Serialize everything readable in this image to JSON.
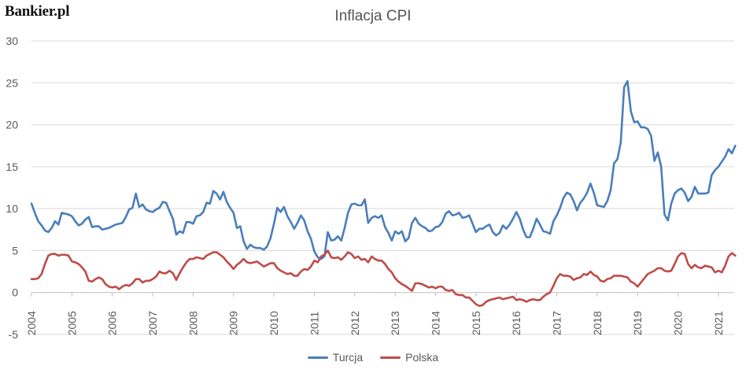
{
  "logo": "Bankier.pl",
  "chart_data": {
    "type": "line",
    "title": "Inflacja CPI",
    "xlabel": "",
    "ylabel": "",
    "ylim": [
      -5,
      30
    ],
    "yticks": [
      -5,
      0,
      5,
      10,
      15,
      20,
      25,
      30
    ],
    "xticks": [
      "2004",
      "2005",
      "2006",
      "2007",
      "2008",
      "2009",
      "2010",
      "2011",
      "2012",
      "2013",
      "2014",
      "2015",
      "2016",
      "2017",
      "2018",
      "2019",
      "2020",
      "2021"
    ],
    "grid": "horizontal",
    "legend_position": "bottom",
    "x_start": "2004-01",
    "x_end": "2021-07",
    "series": [
      {
        "name": "Turcja",
        "color": "#4a7ebb",
        "values": [
          10.6,
          9.5,
          8.5,
          8.0,
          7.4,
          7.2,
          7.7,
          8.5,
          8.1,
          9.5,
          9.4,
          9.3,
          9.1,
          8.5,
          8.0,
          8.2,
          8.7,
          9.0,
          7.8,
          7.9,
          7.9,
          7.5,
          7.6,
          7.7,
          7.9,
          8.1,
          8.2,
          8.3,
          9.0,
          9.9,
          10.1,
          11.8,
          10.2,
          10.5,
          9.9,
          9.7,
          9.6,
          9.9,
          10.1,
          10.8,
          10.7,
          9.7,
          8.8,
          6.9,
          7.3,
          7.1,
          8.4,
          8.4,
          8.2,
          9.1,
          9.2,
          9.6,
          10.7,
          10.6,
          12.1,
          11.8,
          11.1,
          12.0,
          10.8,
          10.1,
          9.5,
          7.7,
          7.9,
          6.1,
          5.2,
          5.7,
          5.4,
          5.3,
          5.3,
          5.1,
          5.5,
          6.5,
          8.2,
          10.1,
          9.6,
          10.2,
          9.1,
          8.4,
          7.6,
          8.3,
          9.2,
          8.6,
          7.3,
          6.4,
          4.9,
          4.2,
          4.0,
          4.3,
          7.2,
          6.2,
          6.3,
          6.7,
          6.2,
          7.7,
          9.5,
          10.5,
          10.6,
          10.4,
          10.4,
          11.1,
          8.3,
          8.9,
          9.1,
          8.9,
          9.2,
          7.8,
          7.1,
          6.2,
          7.3,
          7.0,
          7.3,
          6.1,
          6.5,
          8.3,
          8.9,
          8.2,
          7.9,
          7.7,
          7.3,
          7.4,
          7.8,
          7.9,
          8.4,
          9.4,
          9.7,
          9.2,
          9.3,
          9.5,
          8.9,
          9.0,
          9.2,
          8.2,
          7.2,
          7.6,
          7.6,
          7.9,
          8.1,
          7.2,
          6.8,
          7.1,
          8.0,
          7.6,
          8.1,
          8.8,
          9.6,
          8.8,
          7.5,
          6.6,
          6.6,
          7.6,
          8.8,
          8.1,
          7.3,
          7.2,
          7.0,
          8.5,
          9.2,
          10.1,
          11.3,
          11.9,
          11.7,
          10.9,
          9.8,
          10.7,
          11.2,
          11.9,
          13.0,
          11.9,
          10.4,
          10.3,
          10.2,
          10.9,
          12.2,
          15.4,
          15.9,
          17.9,
          24.5,
          25.2,
          21.6,
          20.3,
          20.4,
          19.7,
          19.7,
          19.5,
          18.7,
          15.7,
          16.7,
          15.0,
          9.3,
          8.6,
          10.6,
          11.8,
          12.2,
          12.4,
          11.9,
          10.9,
          11.4,
          12.6,
          11.8,
          11.8,
          11.8,
          11.9,
          14.0,
          14.6,
          15.0,
          15.6,
          16.2,
          17.1,
          16.6,
          17.5
        ]
      },
      {
        "name": "Polska",
        "color": "#be4b48",
        "values": [
          1.6,
          1.6,
          1.7,
          2.2,
          3.4,
          4.4,
          4.6,
          4.6,
          4.4,
          4.5,
          4.5,
          4.4,
          3.7,
          3.6,
          3.4,
          3.0,
          2.5,
          1.4,
          1.3,
          1.6,
          1.8,
          1.6,
          1.0,
          0.7,
          0.6,
          0.7,
          0.4,
          0.7,
          0.9,
          0.8,
          1.1,
          1.6,
          1.6,
          1.2,
          1.4,
          1.4,
          1.6,
          1.9,
          2.5,
          2.3,
          2.3,
          2.6,
          2.3,
          1.5,
          2.3,
          3.0,
          3.6,
          4.0,
          4.0,
          4.2,
          4.1,
          4.0,
          4.4,
          4.6,
          4.8,
          4.8,
          4.5,
          4.2,
          3.7,
          3.3,
          2.8,
          3.3,
          3.6,
          4.0,
          3.6,
          3.5,
          3.6,
          3.7,
          3.4,
          3.1,
          3.3,
          3.5,
          3.5,
          2.9,
          2.6,
          2.4,
          2.2,
          2.3,
          2.0,
          2.0,
          2.5,
          2.8,
          2.7,
          3.1,
          3.8,
          3.6,
          4.3,
          4.5,
          5.0,
          4.2,
          4.1,
          4.2,
          3.9,
          4.3,
          4.8,
          4.6,
          4.1,
          4.3,
          3.9,
          4.0,
          3.6,
          4.3,
          4.0,
          3.8,
          3.8,
          3.4,
          2.8,
          2.4,
          1.7,
          1.3,
          1.0,
          0.8,
          0.5,
          0.2,
          1.1,
          1.1,
          1.0,
          0.8,
          0.6,
          0.7,
          0.5,
          0.7,
          0.7,
          0.3,
          0.2,
          0.3,
          -0.2,
          -0.3,
          -0.3,
          -0.6,
          -0.6,
          -1.0,
          -1.4,
          -1.6,
          -1.5,
          -1.1,
          -0.9,
          -0.8,
          -0.7,
          -0.6,
          -0.8,
          -0.7,
          -0.6,
          -0.5,
          -0.9,
          -0.8,
          -0.9,
          -1.1,
          -0.9,
          -0.8,
          -0.9,
          -0.9,
          -0.5,
          -0.2,
          0.0,
          0.8,
          1.7,
          2.2,
          2.0,
          2.0,
          1.9,
          1.5,
          1.7,
          1.8,
          2.2,
          2.1,
          2.5,
          2.1,
          1.9,
          1.4,
          1.3,
          1.6,
          1.7,
          2.0,
          2.0,
          2.0,
          1.9,
          1.8,
          1.3,
          1.1,
          0.7,
          1.2,
          1.7,
          2.2,
          2.4,
          2.6,
          2.9,
          2.9,
          2.6,
          2.5,
          2.6,
          3.4,
          4.3,
          4.7,
          4.6,
          3.4,
          2.9,
          3.3,
          3.0,
          2.9,
          3.2,
          3.1,
          3.0,
          2.4,
          2.6,
          2.4,
          3.2,
          4.3,
          4.7,
          4.4
        ]
      }
    ]
  }
}
